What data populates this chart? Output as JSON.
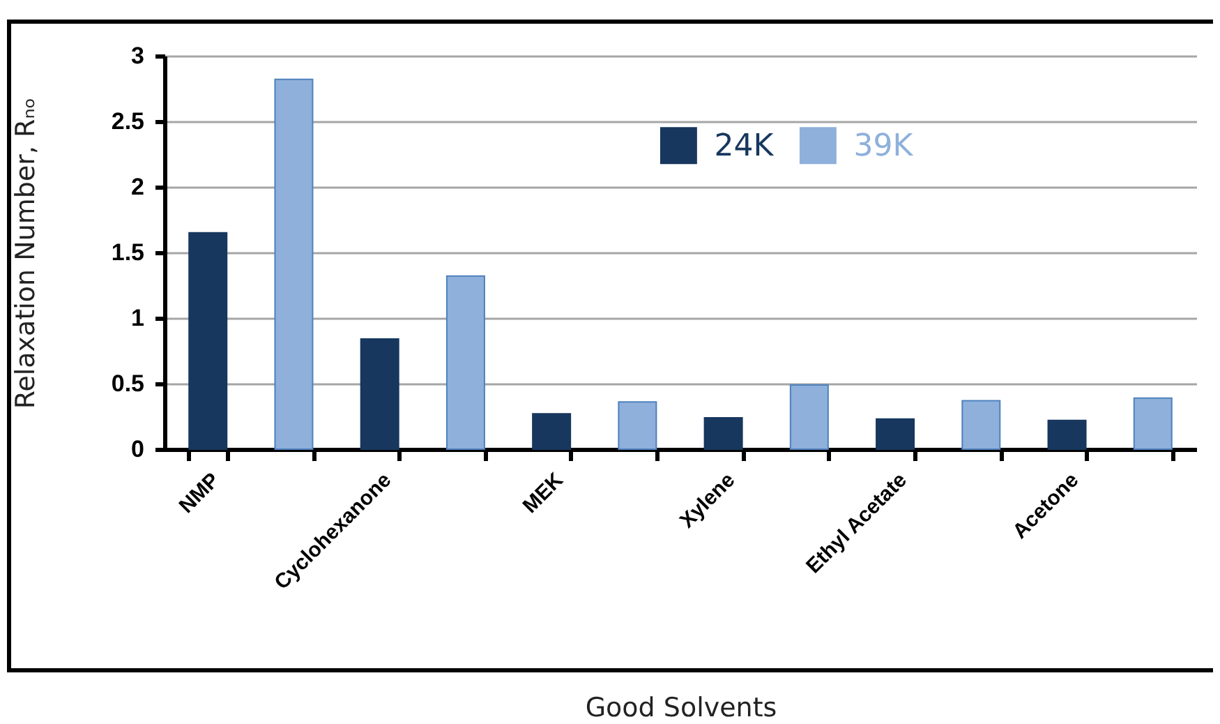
{
  "chart_data": {
    "type": "bar",
    "xlabel": "Good Solvents",
    "ylabel": "Relaxation Number, Rₙₒ",
    "categories": [
      "NMP",
      null,
      "Cyclohexanone",
      null,
      "MEK",
      null,
      "Xylene",
      null,
      "Ethyl Acetate",
      null,
      "Acetone",
      null
    ],
    "series": [
      {
        "name": "24K",
        "color": "#17375e",
        "values": [
          1.65,
          null,
          0.84,
          null,
          0.27,
          null,
          0.24,
          null,
          0.23,
          null,
          0.22,
          null
        ]
      },
      {
        "name": "39K",
        "color": "#8eb0db",
        "values": [
          null,
          2.82,
          null,
          1.32,
          null,
          0.36,
          null,
          0.49,
          null,
          0.37,
          null,
          0.39
        ]
      }
    ],
    "ylim": [
      0,
      3
    ],
    "yticks": [
      0,
      0.5,
      1,
      1.5,
      2,
      2.5,
      3
    ],
    "grid": "y",
    "legend": "top"
  }
}
